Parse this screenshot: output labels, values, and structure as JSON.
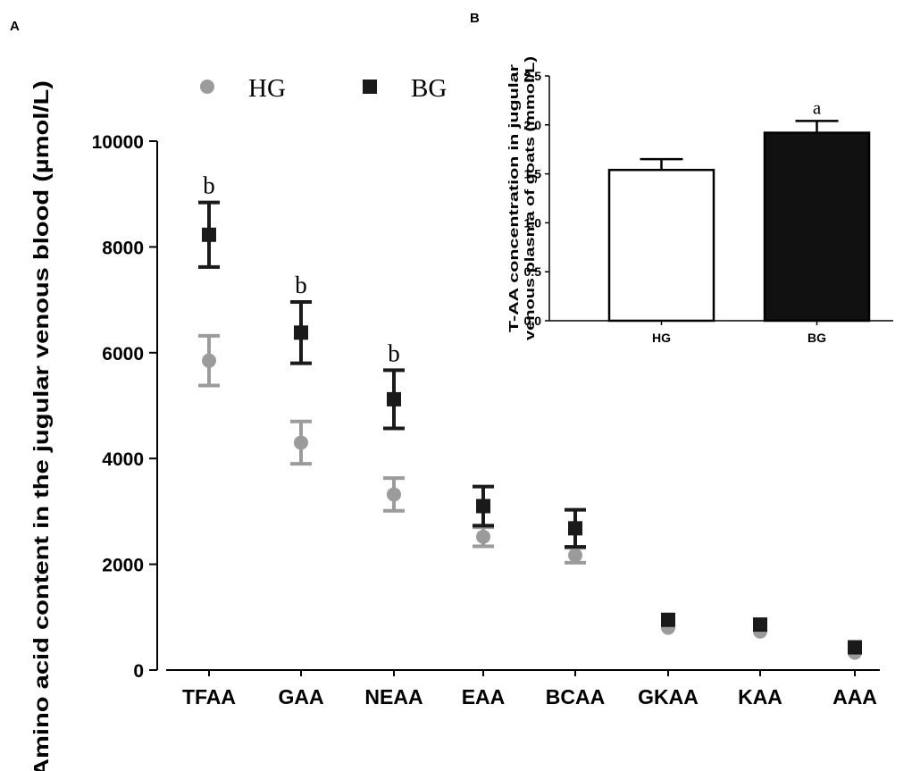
{
  "panel_a_label": "A",
  "panel_b_label": "B",
  "chart_data": [
    {
      "type": "scatter",
      "panel": "A",
      "ylabel": "Amino acid content in the jugular venous blood (µmol/L)",
      "xlabel": "",
      "categories": [
        "TFAA",
        "GAA",
        "NEAA",
        "EAA",
        "BCAA",
        "GKAA",
        "KAA",
        "AAA"
      ],
      "ylim": [
        0,
        10000
      ],
      "yticks": [
        0,
        2000,
        4000,
        6000,
        8000,
        10000
      ],
      "ytick_labels": [
        "0",
        "2000",
        "4000",
        "6000",
        "8000",
        "10000"
      ],
      "legend_position": "top",
      "series": [
        {
          "name": "HG",
          "marker": "circle",
          "color": "#9b9b9b",
          "values": [
            5850,
            4300,
            3320,
            2520,
            2170,
            800,
            730,
            330
          ],
          "errors": [
            470,
            400,
            310,
            180,
            140,
            0,
            0,
            0
          ]
        },
        {
          "name": "BG",
          "marker": "square",
          "color": "#1a1a1a",
          "values": [
            8230,
            6380,
            5120,
            3100,
            2680,
            950,
            860,
            430
          ],
          "errors": [
            610,
            580,
            550,
            370,
            350,
            0,
            0,
            0
          ]
        }
      ],
      "annotations": [
        {
          "category": "TFAA",
          "text": "b"
        },
        {
          "category": "GAA",
          "text": "b"
        },
        {
          "category": "NEAA",
          "text": "b"
        }
      ]
    },
    {
      "type": "bar",
      "panel": "B",
      "ylabel_line1": "T-AA concentration  in  jugular",
      "ylabel_line2": "venous plasma of goats (mmol/L)",
      "categories": [
        "HG",
        "BG"
      ],
      "values": [
        1.54,
        1.92
      ],
      "errors": [
        0.11,
        0.12
      ],
      "colors": [
        "#ffffff",
        "#111111"
      ],
      "ylim": [
        0,
        2.5
      ],
      "yticks": [
        0,
        0.5,
        1.0,
        1.5,
        2.0,
        2.5
      ],
      "ytick_labels": [
        "0.0",
        "0.5",
        "1.0",
        "1.5",
        "2.0",
        "2.5"
      ],
      "annotations": [
        {
          "category": "BG",
          "text": "a"
        }
      ]
    }
  ]
}
